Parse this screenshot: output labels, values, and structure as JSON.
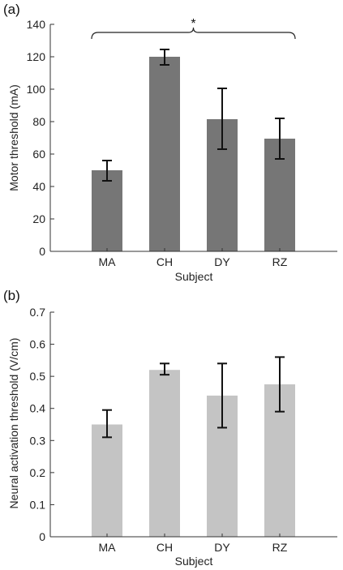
{
  "colors": {
    "panel_a_bar": "#767676",
    "panel_b_bar": "#c4c4c4",
    "axis": "#333333",
    "error_bar": "#111111"
  },
  "chart_data": [
    {
      "type": "bar",
      "panel_label": "(a)",
      "categories": [
        "MA",
        "CH",
        "DY",
        "RZ"
      ],
      "values": [
        50,
        120,
        81.5,
        69.5
      ],
      "error_low": [
        43.5,
        115,
        63,
        57
      ],
      "error_high": [
        56,
        124.5,
        100.5,
        82
      ],
      "xlabel": "Subject",
      "ylabel": "Motor threshold (mA)",
      "ylim": [
        0,
        140
      ],
      "yticks": [
        "0",
        "20",
        "40",
        "60",
        "80",
        "100",
        "120",
        "140"
      ],
      "grid": false,
      "annotation": {
        "text": "*",
        "from": "MA",
        "to": "RZ"
      }
    },
    {
      "type": "bar",
      "panel_label": "(b)",
      "categories": [
        "MA",
        "CH",
        "DY",
        "RZ"
      ],
      "values": [
        0.35,
        0.52,
        0.44,
        0.475
      ],
      "error_low": [
        0.31,
        0.505,
        0.34,
        0.39
      ],
      "error_high": [
        0.395,
        0.54,
        0.54,
        0.56
      ],
      "xlabel": "Subject",
      "ylabel": "Neural activation threshold (V/cm)",
      "ylim": [
        0,
        0.7
      ],
      "yticks": [
        "0",
        "0.1",
        "0.2",
        "0.3",
        "0.4",
        "0.5",
        "0.6",
        "0.7"
      ],
      "grid": false
    }
  ]
}
